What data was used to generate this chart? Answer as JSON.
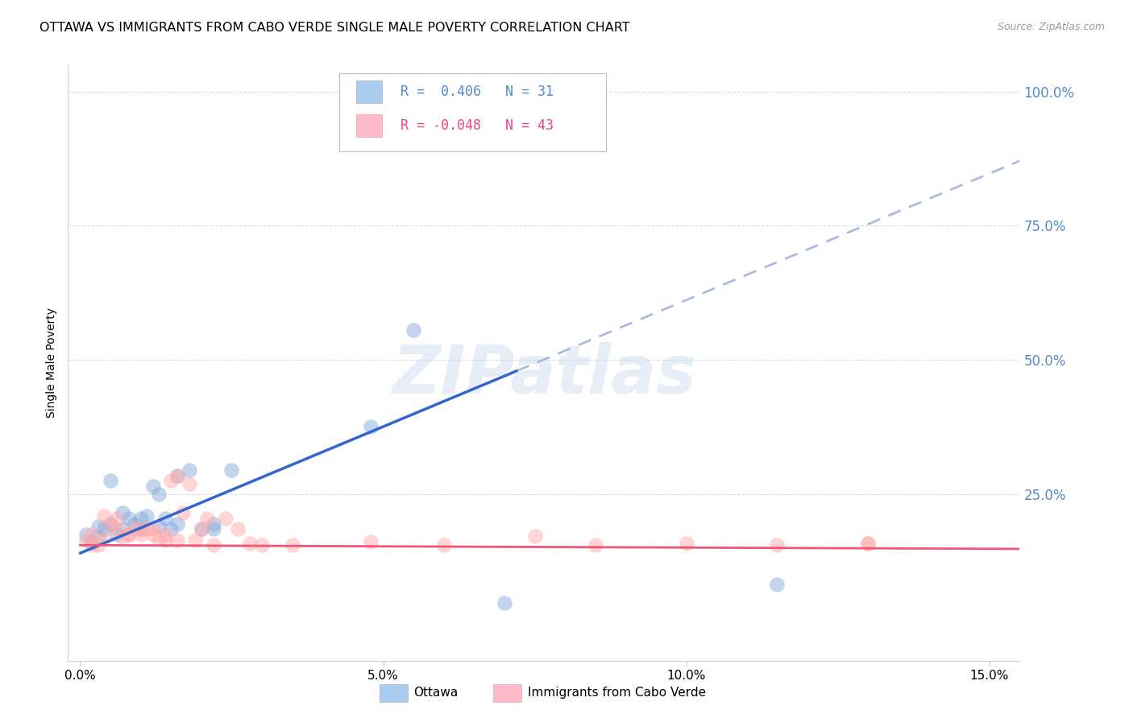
{
  "title": "OTTAWA VS IMMIGRANTS FROM CABO VERDE SINGLE MALE POVERTY CORRELATION CHART",
  "source": "Source: ZipAtlas.com",
  "ylabel": "Single Male Poverty",
  "xlabel_ticks": [
    "0.0%",
    "5.0%",
    "10.0%",
    "15.0%"
  ],
  "xlabel_vals": [
    0.0,
    0.05,
    0.1,
    0.15
  ],
  "ylabel_ticks": [
    "25.0%",
    "50.0%",
    "75.0%",
    "100.0%"
  ],
  "ylabel_vals": [
    0.25,
    0.5,
    0.75,
    1.0
  ],
  "xlim": [
    -0.002,
    0.155
  ],
  "ylim": [
    -0.06,
    1.05
  ],
  "ottawa_color": "#88aadd",
  "immigrants_color": "#ffaaaa",
  "trend_ottawa_color": "#3366cc",
  "trend_immigrants_color": "#ee5577",
  "trend_dashed_color": "#aabbdd",
  "legend_box_ottawa": "#aaccee",
  "legend_box_immigrants": "#ffbbcc",
  "R_ottawa": 0.406,
  "N_ottawa": 31,
  "R_immigrants": -0.048,
  "N_immigrants": 43,
  "watermark": "ZIPatlas",
  "background_color": "#ffffff",
  "right_tick_color": "#5588cc",
  "grid_color": "#dddddd",
  "title_fontsize": 11.5,
  "source_fontsize": 9,
  "tick_fontsize": 11,
  "ylabel_fontsize": 10
}
